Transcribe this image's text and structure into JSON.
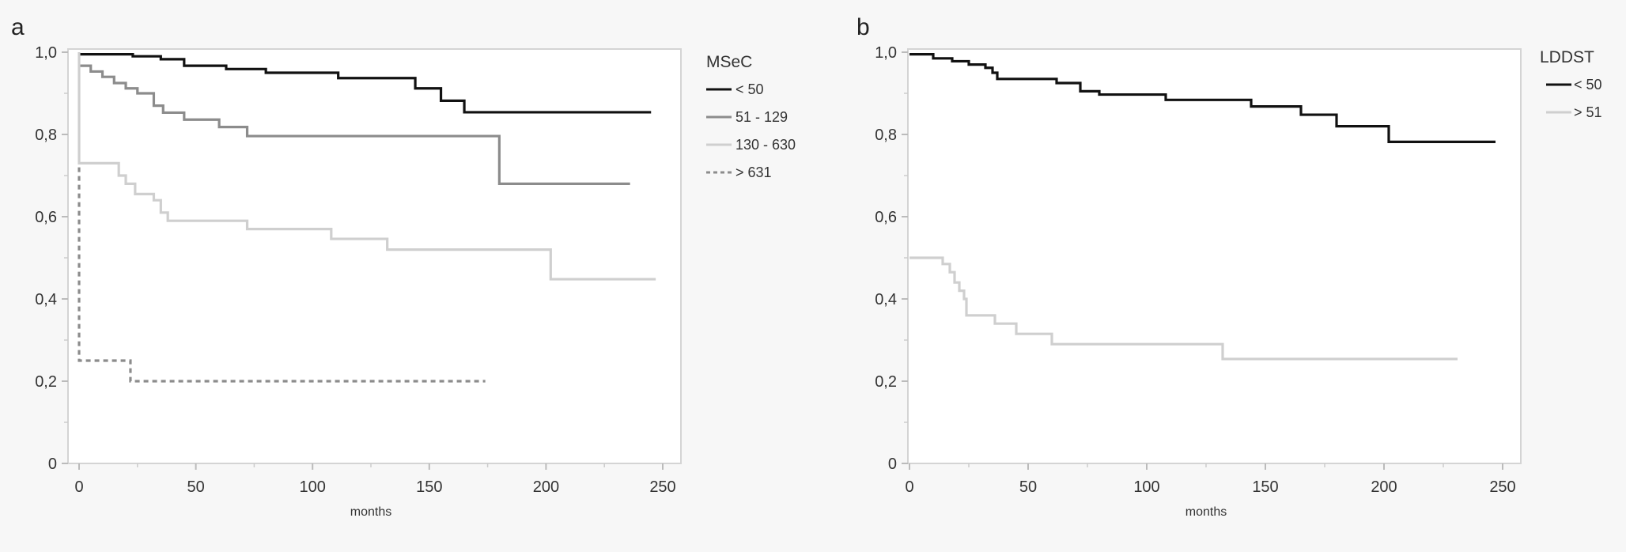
{
  "chart_data": [
    {
      "panel_label": "a",
      "type": "line",
      "step": true,
      "xlabel": "months",
      "ylabel": "",
      "xlim": [
        0,
        250
      ],
      "ylim": [
        0,
        1
      ],
      "x_ticks": [
        "0",
        "50",
        "100",
        "150",
        "200",
        "250"
      ],
      "y_ticks": [
        "0",
        "0,2",
        "0,4",
        "0,6",
        "0,8",
        "1,0"
      ],
      "grid": false,
      "legend_position": "right",
      "legend_title": "MSeC",
      "series": [
        {
          "name": "< 50",
          "color": "#111111",
          "dash": false,
          "x": [
            0,
            23,
            35,
            45,
            63,
            80,
            111,
            144,
            155,
            165,
            245
          ],
          "y": [
            0.995,
            0.99,
            0.983,
            0.967,
            0.959,
            0.95,
            0.937,
            0.912,
            0.882,
            0.854,
            0.854
          ]
        },
        {
          "name": "51 - 129",
          "color": "#8c8c8c",
          "dash": false,
          "x": [
            0,
            5,
            10,
            15,
            20,
            25,
            32,
            36,
            45,
            60,
            72,
            180,
            236
          ],
          "y": [
            0.967,
            0.953,
            0.94,
            0.925,
            0.912,
            0.9,
            0.87,
            0.853,
            0.836,
            0.818,
            0.796,
            0.68,
            0.68
          ]
        },
        {
          "name": "130 - 630",
          "color": "#cfcfcf",
          "dash": false,
          "x": [
            0,
            0,
            17,
            20,
            24,
            32,
            35,
            38,
            72,
            108,
            132,
            202,
            247
          ],
          "y": [
            1.0,
            0.73,
            0.7,
            0.68,
            0.655,
            0.64,
            0.61,
            0.59,
            0.57,
            0.546,
            0.52,
            0.448,
            0.448
          ]
        },
        {
          "name": "> 631",
          "color": "#8c8c8c",
          "dash": true,
          "x": [
            0,
            0,
            22,
            174
          ],
          "y": [
            0.72,
            0.25,
            0.2,
            0.2
          ]
        }
      ]
    },
    {
      "panel_label": "b",
      "type": "line",
      "step": true,
      "xlabel": "months",
      "ylabel": "",
      "xlim": [
        0,
        250
      ],
      "ylim": [
        0,
        1
      ],
      "x_ticks": [
        "0",
        "50",
        "100",
        "150",
        "200",
        "250"
      ],
      "y_ticks": [
        "0",
        "0,2",
        "0,4",
        "0,6",
        "0,8",
        "1,0"
      ],
      "grid": false,
      "legend_position": "right",
      "legend_title": "LDDST",
      "series": [
        {
          "name": "< 50",
          "color": "#111111",
          "dash": false,
          "x": [
            0,
            10,
            18,
            25,
            32,
            35,
            37,
            62,
            72,
            80,
            108,
            144,
            165,
            180,
            202,
            247
          ],
          "y": [
            0.995,
            0.985,
            0.978,
            0.97,
            0.962,
            0.95,
            0.935,
            0.925,
            0.905,
            0.897,
            0.884,
            0.868,
            0.848,
            0.82,
            0.782,
            0.782
          ]
        },
        {
          "name": "> 51",
          "color": "#cfcfcf",
          "dash": false,
          "x": [
            0,
            14,
            17,
            19,
            21,
            23,
            24,
            36,
            45,
            60,
            132,
            231
          ],
          "y": [
            0.5,
            0.485,
            0.465,
            0.44,
            0.42,
            0.4,
            0.36,
            0.34,
            0.315,
            0.29,
            0.254,
            0.254
          ]
        }
      ]
    }
  ]
}
